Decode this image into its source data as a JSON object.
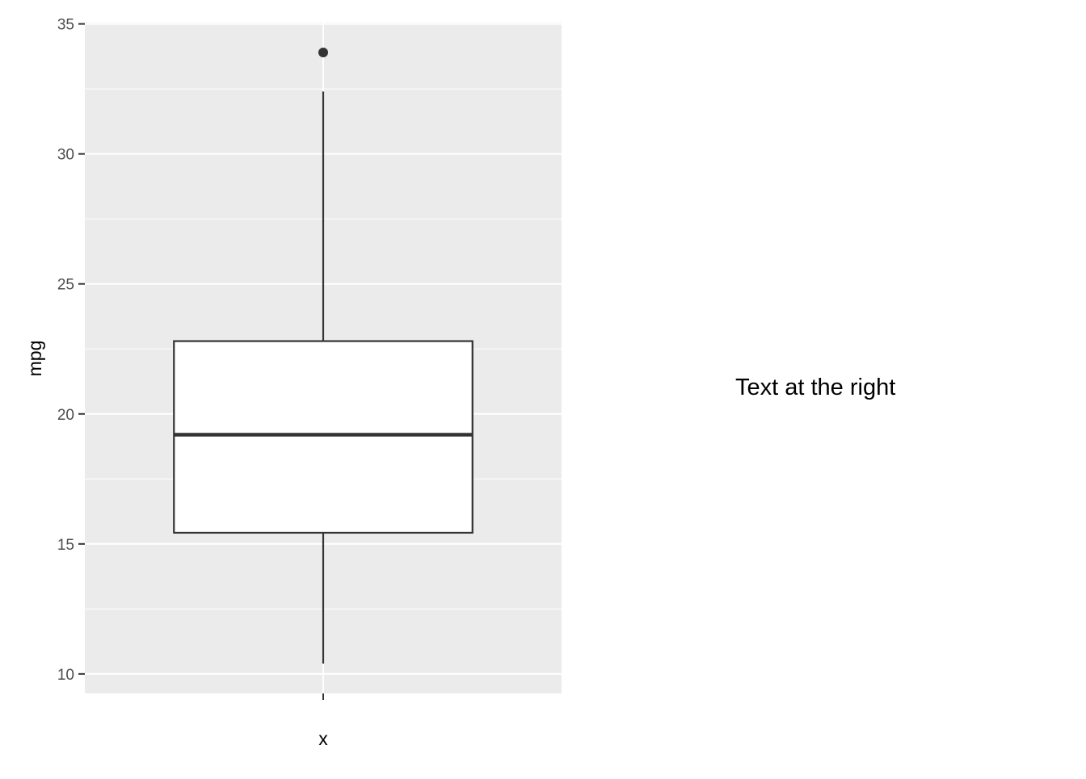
{
  "chart_data": {
    "type": "box",
    "xlabel": "x",
    "ylabel": "mpg",
    "ylim": [
      9.25,
      35.05
    ],
    "y_ticks": [
      10,
      15,
      20,
      25,
      30,
      35
    ],
    "categories": [
      ""
    ],
    "boxes": [
      {
        "category": "",
        "whisker_low": 10.4,
        "q1": 15.43,
        "median": 19.2,
        "q3": 22.8,
        "whisker_high": 32.4,
        "outliers": [
          33.9
        ]
      }
    ],
    "grid": true,
    "colors": {
      "panel_background": "#ebebeb",
      "grid": "#ffffff",
      "box_fill": "#ffffff",
      "box_line": "#333333"
    }
  },
  "annotation": {
    "text": "Text at the right"
  }
}
